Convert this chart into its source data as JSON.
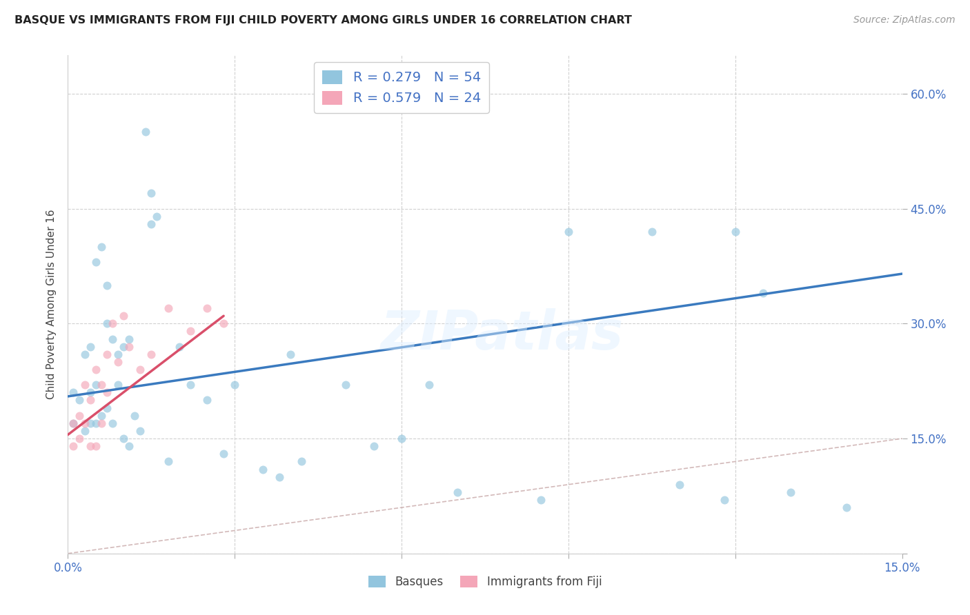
{
  "title": "BASQUE VS IMMIGRANTS FROM FIJI CHILD POVERTY AMONG GIRLS UNDER 16 CORRELATION CHART",
  "source": "Source: ZipAtlas.com",
  "ylabel": "Child Poverty Among Girls Under 16",
  "x_min": 0.0,
  "x_max": 0.15,
  "y_min": 0.0,
  "y_max": 0.65,
  "x_ticks": [
    0.0,
    0.03,
    0.06,
    0.09,
    0.12,
    0.15
  ],
  "x_tick_labels": [
    "0.0%",
    "",
    "",
    "",
    "",
    "15.0%"
  ],
  "y_ticks": [
    0.0,
    0.15,
    0.3,
    0.45,
    0.6
  ],
  "y_tick_labels": [
    "",
    "15.0%",
    "30.0%",
    "45.0%",
    "60.0%"
  ],
  "legend1_R": "0.279",
  "legend1_N": "54",
  "legend2_R": "0.579",
  "legend2_N": "24",
  "color_blue": "#92c5de",
  "color_pink": "#f4a6b8",
  "color_line_blue": "#3a7abf",
  "color_line_pink": "#d94f6a",
  "color_diag": "#c8a8a8",
  "watermark_text": "ZIPatlas",
  "basque_x": [
    0.001,
    0.001,
    0.002,
    0.003,
    0.003,
    0.004,
    0.004,
    0.004,
    0.005,
    0.005,
    0.005,
    0.006,
    0.006,
    0.007,
    0.007,
    0.007,
    0.008,
    0.008,
    0.009,
    0.009,
    0.01,
    0.01,
    0.011,
    0.011,
    0.012,
    0.013,
    0.014,
    0.015,
    0.015,
    0.016,
    0.018,
    0.02,
    0.022,
    0.025,
    0.028,
    0.03,
    0.035,
    0.038,
    0.04,
    0.042,
    0.05,
    0.055,
    0.06,
    0.065,
    0.07,
    0.085,
    0.09,
    0.105,
    0.11,
    0.118,
    0.12,
    0.125,
    0.13,
    0.14
  ],
  "basque_y": [
    0.17,
    0.21,
    0.2,
    0.26,
    0.16,
    0.27,
    0.21,
    0.17,
    0.38,
    0.22,
    0.17,
    0.4,
    0.18,
    0.35,
    0.3,
    0.19,
    0.28,
    0.17,
    0.26,
    0.22,
    0.27,
    0.15,
    0.28,
    0.14,
    0.18,
    0.16,
    0.55,
    0.47,
    0.43,
    0.44,
    0.12,
    0.27,
    0.22,
    0.2,
    0.13,
    0.22,
    0.11,
    0.1,
    0.26,
    0.12,
    0.22,
    0.14,
    0.15,
    0.22,
    0.08,
    0.07,
    0.42,
    0.42,
    0.09,
    0.07,
    0.42,
    0.34,
    0.08,
    0.06
  ],
  "fiji_x": [
    0.001,
    0.001,
    0.002,
    0.002,
    0.003,
    0.003,
    0.004,
    0.004,
    0.005,
    0.005,
    0.006,
    0.006,
    0.007,
    0.007,
    0.008,
    0.009,
    0.01,
    0.011,
    0.013,
    0.015,
    0.018,
    0.022,
    0.025,
    0.028
  ],
  "fiji_y": [
    0.17,
    0.14,
    0.18,
    0.15,
    0.22,
    0.17,
    0.2,
    0.14,
    0.24,
    0.14,
    0.22,
    0.17,
    0.26,
    0.21,
    0.3,
    0.25,
    0.31,
    0.27,
    0.24,
    0.26,
    0.32,
    0.29,
    0.32,
    0.3
  ],
  "basque_marker_size": 75,
  "fiji_marker_size": 75,
  "background_color": "#ffffff",
  "grid_color": "#d0d0d0",
  "blue_line_x0": 0.0,
  "blue_line_y0": 0.205,
  "blue_line_x1": 0.15,
  "blue_line_y1": 0.365,
  "pink_line_x0": 0.0,
  "pink_line_y0": 0.155,
  "pink_line_x1": 0.028,
  "pink_line_y1": 0.31
}
